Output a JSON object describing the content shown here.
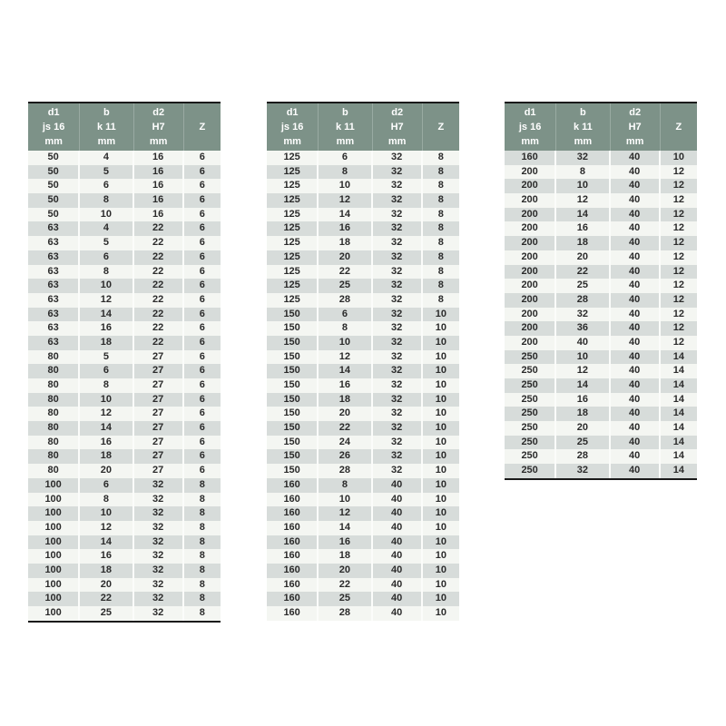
{
  "style": {
    "header_bg": "#7d9288",
    "header_text": "#ffffff",
    "row_light": "#f4f6f2",
    "row_dark": "#d7dcda",
    "border_dark": "#1a1a1a",
    "text_color": "#2b2b2b",
    "page_bg": "#ffffff"
  },
  "header": {
    "columns": [
      {
        "id": "d1",
        "lines": [
          "d1",
          "js 16",
          "mm"
        ]
      },
      {
        "id": "b",
        "lines": [
          "b",
          "k 11",
          "mm"
        ]
      },
      {
        "id": "d2",
        "lines": [
          "d2",
          "H7",
          "mm"
        ]
      },
      {
        "id": "z",
        "lines": [
          "Z"
        ]
      }
    ]
  },
  "tables": [
    {
      "name": "size-table-50-100",
      "first_row_shade": "light",
      "bottom_border": true,
      "rows": [
        [
          50,
          4,
          16,
          6
        ],
        [
          50,
          5,
          16,
          6
        ],
        [
          50,
          6,
          16,
          6
        ],
        [
          50,
          8,
          16,
          6
        ],
        [
          50,
          10,
          16,
          6
        ],
        [
          63,
          4,
          22,
          6
        ],
        [
          63,
          5,
          22,
          6
        ],
        [
          63,
          6,
          22,
          6
        ],
        [
          63,
          8,
          22,
          6
        ],
        [
          63,
          10,
          22,
          6
        ],
        [
          63,
          12,
          22,
          6
        ],
        [
          63,
          14,
          22,
          6
        ],
        [
          63,
          16,
          22,
          6
        ],
        [
          63,
          18,
          22,
          6
        ],
        [
          80,
          5,
          27,
          6
        ],
        [
          80,
          6,
          27,
          6
        ],
        [
          80,
          8,
          27,
          6
        ],
        [
          80,
          10,
          27,
          6
        ],
        [
          80,
          12,
          27,
          6
        ],
        [
          80,
          14,
          27,
          6
        ],
        [
          80,
          16,
          27,
          6
        ],
        [
          80,
          18,
          27,
          6
        ],
        [
          80,
          20,
          27,
          6
        ],
        [
          100,
          6,
          32,
          8
        ],
        [
          100,
          8,
          32,
          8
        ],
        [
          100,
          10,
          32,
          8
        ],
        [
          100,
          12,
          32,
          8
        ],
        [
          100,
          14,
          32,
          8
        ],
        [
          100,
          16,
          32,
          8
        ],
        [
          100,
          18,
          32,
          8
        ],
        [
          100,
          20,
          32,
          8
        ],
        [
          100,
          22,
          32,
          8
        ],
        [
          100,
          25,
          32,
          8
        ]
      ]
    },
    {
      "name": "size-table-125-160",
      "first_row_shade": "light",
      "bottom_border": false,
      "rows": [
        [
          125,
          6,
          32,
          8
        ],
        [
          125,
          8,
          32,
          8
        ],
        [
          125,
          10,
          32,
          8
        ],
        [
          125,
          12,
          32,
          8
        ],
        [
          125,
          14,
          32,
          8
        ],
        [
          125,
          16,
          32,
          8
        ],
        [
          125,
          18,
          32,
          8
        ],
        [
          125,
          20,
          32,
          8
        ],
        [
          125,
          22,
          32,
          8
        ],
        [
          125,
          25,
          32,
          8
        ],
        [
          125,
          28,
          32,
          8
        ],
        [
          150,
          6,
          32,
          10
        ],
        [
          150,
          8,
          32,
          10
        ],
        [
          150,
          10,
          32,
          10
        ],
        [
          150,
          12,
          32,
          10
        ],
        [
          150,
          14,
          32,
          10
        ],
        [
          150,
          16,
          32,
          10
        ],
        [
          150,
          18,
          32,
          10
        ],
        [
          150,
          20,
          32,
          10
        ],
        [
          150,
          22,
          32,
          10
        ],
        [
          150,
          24,
          32,
          10
        ],
        [
          150,
          26,
          32,
          10
        ],
        [
          150,
          28,
          32,
          10
        ],
        [
          160,
          8,
          40,
          10
        ],
        [
          160,
          10,
          40,
          10
        ],
        [
          160,
          12,
          40,
          10
        ],
        [
          160,
          14,
          40,
          10
        ],
        [
          160,
          16,
          40,
          10
        ],
        [
          160,
          18,
          40,
          10
        ],
        [
          160,
          20,
          40,
          10
        ],
        [
          160,
          22,
          40,
          10
        ],
        [
          160,
          25,
          40,
          10
        ],
        [
          160,
          28,
          40,
          10
        ]
      ]
    },
    {
      "name": "size-table-160-250",
      "first_row_shade": "dark",
      "bottom_border": true,
      "rows": [
        [
          160,
          32,
          40,
          10
        ],
        [
          200,
          8,
          40,
          12
        ],
        [
          200,
          10,
          40,
          12
        ],
        [
          200,
          12,
          40,
          12
        ],
        [
          200,
          14,
          40,
          12
        ],
        [
          200,
          16,
          40,
          12
        ],
        [
          200,
          18,
          40,
          12
        ],
        [
          200,
          20,
          40,
          12
        ],
        [
          200,
          22,
          40,
          12
        ],
        [
          200,
          25,
          40,
          12
        ],
        [
          200,
          28,
          40,
          12
        ],
        [
          200,
          32,
          40,
          12
        ],
        [
          200,
          36,
          40,
          12
        ],
        [
          200,
          40,
          40,
          12
        ],
        [
          250,
          10,
          40,
          14
        ],
        [
          250,
          12,
          40,
          14
        ],
        [
          250,
          14,
          40,
          14
        ],
        [
          250,
          16,
          40,
          14
        ],
        [
          250,
          18,
          40,
          14
        ],
        [
          250,
          20,
          40,
          14
        ],
        [
          250,
          25,
          40,
          14
        ],
        [
          250,
          28,
          40,
          14
        ],
        [
          250,
          32,
          40,
          14
        ]
      ]
    }
  ]
}
